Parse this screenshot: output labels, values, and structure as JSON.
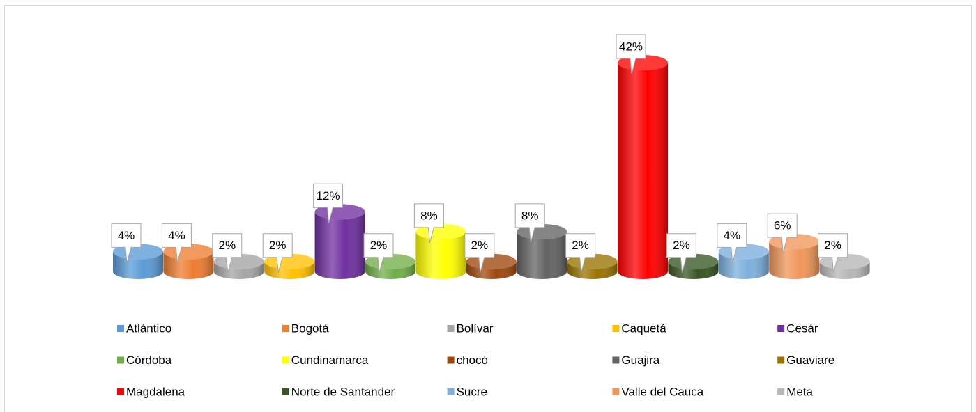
{
  "chart_data": {
    "type": "bar3d",
    "categories": [
      "Atlántico",
      "Bogotá",
      "Bolívar",
      "Caquetá",
      "Cesár",
      "Córdoba",
      "Cundinamarca",
      "chocó",
      "Guajira",
      "Guaviare",
      "Magdalena",
      "Norte de Santander",
      "Sucre",
      "Valle del Cauca",
      "Meta"
    ],
    "values": [
      4,
      4,
      2,
      2,
      12,
      2,
      8,
      2,
      8,
      2,
      42,
      2,
      4,
      6,
      2
    ],
    "value_labels": [
      "4%",
      "4%",
      "2%",
      "2%",
      "12%",
      "2%",
      "8%",
      "2%",
      "8%",
      "2%",
      "42%",
      "2%",
      "4%",
      "6%",
      "2%"
    ],
    "colors": [
      "#5b9bd5",
      "#ed7d31",
      "#a5a5a5",
      "#ffc000",
      "#7030a0",
      "#70ad47",
      "#ffff00",
      "#9e480e",
      "#636363",
      "#997300",
      "#ff0000",
      "#375623",
      "#7cafdd",
      "#f1975a",
      "#b7b7b7"
    ],
    "legend": "bottom"
  }
}
